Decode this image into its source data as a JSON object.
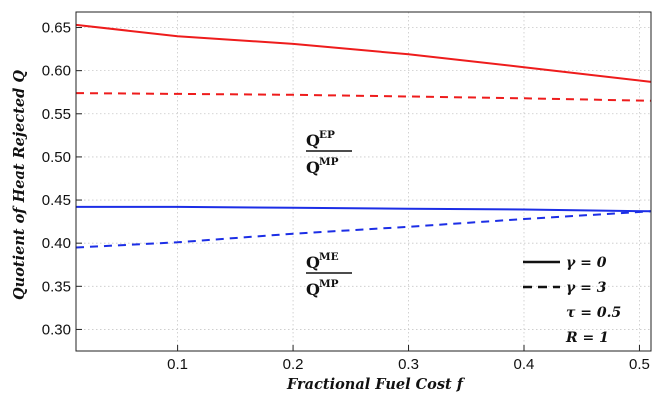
{
  "chart_data": {
    "type": "line",
    "xlabel": "Fractional Fuel Cost f",
    "ylabel": "Quotient of Heat Rejected Q",
    "xlim": [
      0.012,
      0.51
    ],
    "ylim": [
      0.275,
      0.668
    ],
    "x_ticks": [
      {
        "value": 0.1,
        "label": "0.1"
      },
      {
        "value": 0.2,
        "label": "0.2"
      },
      {
        "value": 0.3,
        "label": "0.3"
      },
      {
        "value": 0.4,
        "label": "0.4"
      },
      {
        "value": 0.5,
        "label": "0.5"
      }
    ],
    "y_ticks": [
      {
        "value": 0.3,
        "label": "0.30"
      },
      {
        "value": 0.35,
        "label": "0.35"
      },
      {
        "value": 0.4,
        "label": "0.40"
      },
      {
        "value": 0.45,
        "label": "0.45"
      },
      {
        "value": 0.5,
        "label": "0.50"
      },
      {
        "value": 0.55,
        "label": "0.55"
      },
      {
        "value": 0.6,
        "label": "0.60"
      },
      {
        "value": 0.65,
        "label": "0.65"
      }
    ],
    "grid": true,
    "series": [
      {
        "color": "#ee1c1c",
        "dash": "solid",
        "x": [
          0.012,
          0.1,
          0.2,
          0.3,
          0.4,
          0.51
        ],
        "y": [
          0.653,
          0.64,
          0.631,
          0.619,
          0.604,
          0.587
        ]
      },
      {
        "color": "#ee1c1c",
        "dash": "dashed",
        "x": [
          0.012,
          0.1,
          0.2,
          0.3,
          0.4,
          0.51
        ],
        "y": [
          0.574,
          0.573,
          0.572,
          0.57,
          0.568,
          0.565
        ]
      },
      {
        "color": "#1c2ee6",
        "dash": "solid",
        "x": [
          0.012,
          0.1,
          0.2,
          0.3,
          0.4,
          0.51
        ],
        "y": [
          0.442,
          0.442,
          0.441,
          0.44,
          0.439,
          0.437
        ]
      },
      {
        "color": "#1c2ee6",
        "dash": "dashed",
        "x": [
          0.012,
          0.1,
          0.2,
          0.3,
          0.4,
          0.51
        ],
        "y": [
          0.395,
          0.401,
          0.411,
          0.419,
          0.428,
          0.437
        ]
      }
    ],
    "annotations": [
      {
        "numerator": "Q",
        "numerator_sup": "EP",
        "denominator": "Q",
        "denominator_sup": "MP"
      },
      {
        "numerator": "Q",
        "numerator_sup": "ME",
        "denominator": "Q",
        "denominator_sup": "MP"
      }
    ],
    "legend": {
      "position": "bottom-right",
      "entries": [
        {
          "label": "γ = 0",
          "style": "solid"
        },
        {
          "label": "γ = 3",
          "style": "dashed"
        },
        {
          "label": "τ = 0.5",
          "style": "none"
        },
        {
          "label": "R = 1",
          "style": "none"
        }
      ]
    }
  }
}
